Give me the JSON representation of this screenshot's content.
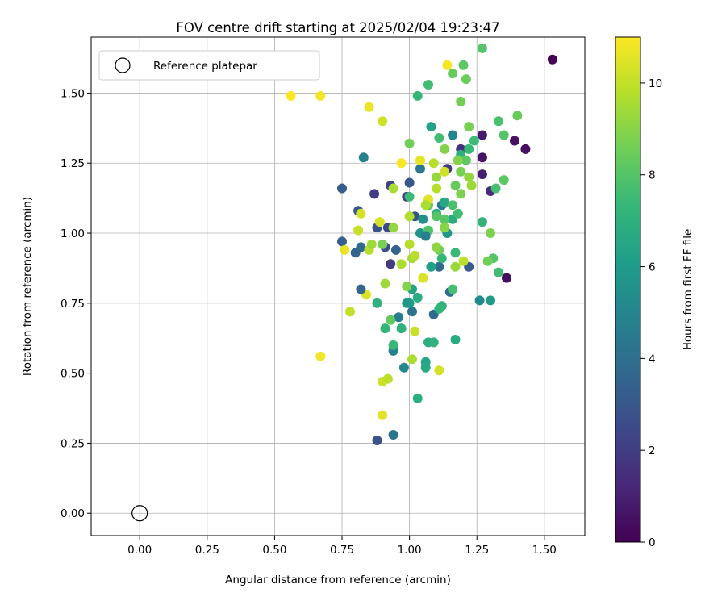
{
  "chart_data": {
    "type": "scatter",
    "title": "FOV centre drift starting at 2025/02/04 19:23:47",
    "xlabel": "Angular distance from reference (arcmin)",
    "ylabel": "Rotation from reference (arcmin)",
    "xlim": [
      -0.18,
      1.65
    ],
    "ylim": [
      -0.08,
      1.7
    ],
    "x_ticks": [
      "0.00",
      "0.25",
      "0.50",
      "0.75",
      "1.00",
      "1.25",
      "1.50"
    ],
    "y_ticks": [
      "0.00",
      "0.25",
      "0.50",
      "0.75",
      "1.00",
      "1.25",
      "1.50"
    ],
    "grid": true,
    "legend": {
      "position": "top-left",
      "label": "Reference platepar"
    },
    "reference_point": {
      "x": 0.0,
      "y": 0.0
    },
    "colorbar": {
      "label": "Hours from first FF file",
      "colormap": "viridis",
      "range": [
        0,
        11
      ],
      "ticks": [
        "0",
        "2",
        "4",
        "6",
        "8",
        "10"
      ]
    },
    "colormap_stops": [
      "#440154",
      "#482878",
      "#3e4989",
      "#31688e",
      "#26828e",
      "#1f9e89",
      "#35b779",
      "#6ece58",
      "#b5de2b",
      "#fde725"
    ],
    "points": [
      [
        1.53,
        1.62,
        0.0
      ],
      [
        1.27,
        1.35,
        0.8
      ],
      [
        1.27,
        1.27,
        0.6
      ],
      [
        1.27,
        1.21,
        0.9
      ],
      [
        1.39,
        1.33,
        0.5
      ],
      [
        1.43,
        1.3,
        0.4
      ],
      [
        1.36,
        0.84,
        0.3
      ],
      [
        1.3,
        1.15,
        1.3
      ],
      [
        1.19,
        1.3,
        1.6
      ],
      [
        1.14,
        1.23,
        1.8
      ],
      [
        0.87,
        1.14,
        2.0
      ],
      [
        0.93,
        1.17,
        2.2
      ],
      [
        0.99,
        1.13,
        2.1
      ],
      [
        0.92,
        1.02,
        2.4
      ],
      [
        0.93,
        0.89,
        2.0
      ],
      [
        0.88,
        1.02,
        2.8
      ],
      [
        0.91,
        0.95,
        2.6
      ],
      [
        0.75,
        1.16,
        3.2
      ],
      [
        0.81,
        1.08,
        3.0
      ],
      [
        0.75,
        0.97,
        3.3
      ],
      [
        0.8,
        0.93,
        3.5
      ],
      [
        0.82,
        0.95,
        3.7
      ],
      [
        1.0,
        1.18,
        3.0
      ],
      [
        1.02,
        1.06,
        2.8
      ],
      [
        0.88,
        0.26,
        2.8
      ],
      [
        0.94,
        0.28,
        4.2
      ],
      [
        0.94,
        0.58,
        4.8
      ],
      [
        0.98,
        0.52,
        5.2
      ],
      [
        0.96,
        0.7,
        4.6
      ],
      [
        1.01,
        0.72,
        4.2
      ],
      [
        1.09,
        0.71,
        3.9
      ],
      [
        1.11,
        0.88,
        3.8
      ],
      [
        1.15,
        0.79,
        3.9
      ],
      [
        1.22,
        0.88,
        3.2
      ],
      [
        1.04,
        1.23,
        4.4
      ],
      [
        0.83,
        1.27,
        4.8
      ],
      [
        1.12,
        1.1,
        4.5
      ],
      [
        1.16,
        1.35,
        5.0
      ],
      [
        1.26,
        0.76,
        5.2
      ],
      [
        1.3,
        0.76,
        6.0
      ],
      [
        1.05,
        1.05,
        5.5
      ],
      [
        1.04,
        1.0,
        5.7
      ],
      [
        1.08,
        0.88,
        6.2
      ],
      [
        1.14,
        1.0,
        5.8
      ],
      [
        1.08,
        1.38,
        6.3
      ],
      [
        1.03,
        0.41,
        6.9
      ],
      [
        1.06,
        0.52,
        6.6
      ],
      [
        1.06,
        0.54,
        6.5
      ],
      [
        1.07,
        0.61,
        6.9
      ],
      [
        1.09,
        0.61,
        7.1
      ],
      [
        1.17,
        0.62,
        6.7
      ],
      [
        1.01,
        0.8,
        6.4
      ],
      [
        1.0,
        0.75,
        6.2
      ],
      [
        1.03,
        0.77,
        6.8
      ],
      [
        1.12,
        0.74,
        7.0
      ],
      [
        1.11,
        0.73,
        7.2
      ],
      [
        1.1,
        1.07,
        6.8
      ],
      [
        1.13,
        1.11,
        6.6
      ],
      [
        1.16,
        1.05,
        6.8
      ],
      [
        1.19,
        1.28,
        7.0
      ],
      [
        1.22,
        1.3,
        7.4
      ],
      [
        1.24,
        1.33,
        7.5
      ],
      [
        1.11,
        1.34,
        7.6
      ],
      [
        1.03,
        1.49,
        7.3
      ],
      [
        1.07,
        1.53,
        7.6
      ],
      [
        1.27,
        1.66,
        8.0
      ],
      [
        1.2,
        1.6,
        8.2
      ],
      [
        1.16,
        1.57,
        8.4
      ],
      [
        1.21,
        1.55,
        8.5
      ],
      [
        1.19,
        1.47,
        8.6
      ],
      [
        1.22,
        1.38,
        8.7
      ],
      [
        1.33,
        1.4,
        7.8
      ],
      [
        1.35,
        1.35,
        8.0
      ],
      [
        1.4,
        1.42,
        8.4
      ],
      [
        1.35,
        1.19,
        8.2
      ],
      [
        1.32,
        1.16,
        7.7
      ],
      [
        1.31,
        0.91,
        8.0
      ],
      [
        1.29,
        0.9,
        8.6
      ],
      [
        1.33,
        0.86,
        7.6
      ],
      [
        1.3,
        1.0,
        8.8
      ],
      [
        1.27,
        1.04,
        7.2
      ],
      [
        1.17,
        0.93,
        7.4
      ],
      [
        1.16,
        0.8,
        7.7
      ],
      [
        1.12,
        0.91,
        7.3
      ],
      [
        1.11,
        0.94,
        8.5
      ],
      [
        1.16,
        1.1,
        7.8
      ],
      [
        1.13,
        1.05,
        8.1
      ],
      [
        1.18,
        1.07,
        7.6
      ],
      [
        1.17,
        1.17,
        8.4
      ],
      [
        1.19,
        1.14,
        8.8
      ],
      [
        1.19,
        1.22,
        8.7
      ],
      [
        1.21,
        1.26,
        8.2
      ],
      [
        1.18,
        1.26,
        8.9
      ],
      [
        1.22,
        1.2,
        9.2
      ],
      [
        1.23,
        1.17,
        9.4
      ],
      [
        1.13,
        1.3,
        8.9
      ],
      [
        1.07,
        1.1,
        8.3
      ],
      [
        1.1,
        1.06,
        8.0
      ],
      [
        1.0,
        1.32,
        8.6
      ],
      [
        1.07,
        1.01,
        7.9
      ],
      [
        1.0,
        1.13,
        7.5
      ],
      [
        0.91,
        0.66,
        7.2
      ],
      [
        0.94,
        0.6,
        7.4
      ],
      [
        0.97,
        0.66,
        7.1
      ],
      [
        0.88,
        0.75,
        7.0
      ],
      [
        0.93,
        0.69,
        8.3
      ],
      [
        0.99,
        0.81,
        8.9
      ],
      [
        1.01,
        0.55,
        9.6
      ],
      [
        1.02,
        0.65,
        10.1
      ],
      [
        0.9,
        0.47,
        10.2
      ],
      [
        0.92,
        0.48,
        9.9
      ],
      [
        0.91,
        0.82,
        9.4
      ],
      [
        0.97,
        0.89,
        9.6
      ],
      [
        1.0,
        0.96,
        9.8
      ],
      [
        1.01,
        0.91,
        9.5
      ],
      [
        1.02,
        0.92,
        9.8
      ],
      [
        1.1,
        0.95,
        9.1
      ],
      [
        1.17,
        0.88,
        9.3
      ],
      [
        1.2,
        0.9,
        9.9
      ],
      [
        1.13,
        1.02,
        9.0
      ],
      [
        1.0,
        1.06,
        9.7
      ],
      [
        0.94,
        1.02,
        9.2
      ],
      [
        0.94,
        1.16,
        9.6
      ],
      [
        1.1,
        1.16,
        9.8
      ],
      [
        1.1,
        1.2,
        9.3
      ],
      [
        1.13,
        1.22,
        10.2
      ],
      [
        1.07,
        1.12,
        10.5
      ],
      [
        1.06,
        1.1,
        9.6
      ],
      [
        1.09,
        1.25,
        9.8
      ],
      [
        1.04,
        1.26,
        10.6
      ],
      [
        0.97,
        1.25,
        10.9
      ],
      [
        0.9,
        1.4,
        10.2
      ],
      [
        0.85,
        1.45,
        10.7
      ],
      [
        0.67,
        1.49,
        10.8
      ],
      [
        0.56,
        1.49,
        11.0
      ],
      [
        0.89,
        1.04,
        10.3
      ],
      [
        0.82,
        1.07,
        10.3
      ],
      [
        0.81,
        1.01,
        10.1
      ],
      [
        0.85,
        0.94,
        9.8
      ],
      [
        0.86,
        0.96,
        9.4
      ],
      [
        0.76,
        0.94,
        10.6
      ],
      [
        0.9,
        0.96,
        8.7
      ],
      [
        0.84,
        0.78,
        10.4
      ],
      [
        0.78,
        0.72,
        10.0
      ],
      [
        0.67,
        0.56,
        10.8
      ],
      [
        0.9,
        0.35,
        10.5
      ],
      [
        1.05,
        0.84,
        10.4
      ],
      [
        1.11,
        0.51,
        10.3
      ],
      [
        1.14,
        1.6,
        10.9
      ],
      [
        0.82,
        0.8,
        3.6
      ],
      [
        0.95,
        0.94,
        3.5
      ],
      [
        1.06,
        0.99,
        4.8
      ],
      [
        0.99,
        0.75,
        5.8
      ]
    ]
  }
}
